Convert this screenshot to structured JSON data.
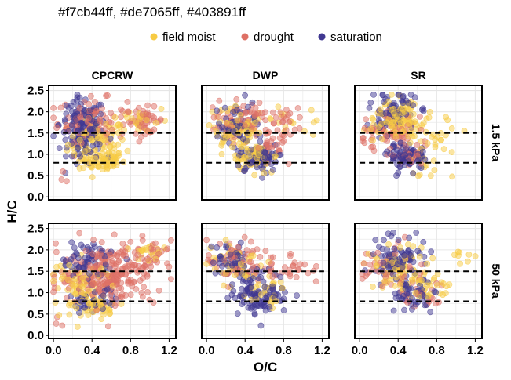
{
  "figure": {
    "title": "#f7cb44ff, #de7065ff, #403891ff"
  },
  "chart_data": {
    "type": "scatter",
    "title": "#f7cb44ff, #de7065ff, #403891ff",
    "xlabel": "O/C",
    "ylabel": "H/C",
    "xlim": [
      -0.05,
      1.27
    ],
    "ylim": [
      -0.07,
      2.62
    ],
    "x_ticks": [
      0.0,
      0.4,
      0.8,
      1.2
    ],
    "x_tick_labels": [
      "0.0",
      "0.4",
      "0.8",
      "1.2"
    ],
    "y_ticks": [
      0.0,
      0.5,
      1.0,
      1.5,
      2.0,
      2.5
    ],
    "y_tick_labels": [
      "0.0",
      "0.5",
      "1.0",
      "1.5",
      "2.0",
      "2.5"
    ],
    "grid": true,
    "legend_position": "top",
    "reference_lines": [
      {
        "y": 1.5,
        "style": "dashed"
      },
      {
        "y": 0.8,
        "style": "dashed"
      }
    ],
    "legend": [
      {
        "name": "field moist",
        "color": "#f7cb44"
      },
      {
        "name": "drought",
        "color": "#de7065"
      },
      {
        "name": "saturation",
        "color": "#403891"
      }
    ],
    "facet_columns": [
      "CPCRW",
      "DWP",
      "SR"
    ],
    "facet_rows": [
      "1.5 kPa",
      "50 kPa"
    ],
    "panels": [
      {
        "column": "CPCRW",
        "row": "1.5 kPa",
        "series": [
          {
            "name": "field moist",
            "clusters": [
              {
                "x": 0.45,
                "y": 1.25,
                "sx": 0.15,
                "sy": 0.3,
                "n": 95
              },
              {
                "x": 0.5,
                "y": 0.85,
                "sx": 0.12,
                "sy": 0.12,
                "n": 55
              },
              {
                "x": 0.9,
                "y": 1.8,
                "sx": 0.15,
                "sy": 0.18,
                "n": 25
              }
            ]
          },
          {
            "name": "drought",
            "clusters": [
              {
                "x": 0.4,
                "y": 1.8,
                "sx": 0.18,
                "sy": 0.25,
                "n": 90
              },
              {
                "x": 0.95,
                "y": 1.8,
                "sx": 0.1,
                "sy": 0.15,
                "n": 45
              },
              {
                "x": 0.08,
                "y": 0.4,
                "sx": 0.03,
                "sy": 0.1,
                "n": 3
              }
            ]
          },
          {
            "name": "saturation",
            "clusters": [
              {
                "x": 0.3,
                "y": 1.7,
                "sx": 0.12,
                "sy": 0.3,
                "n": 110
              },
              {
                "x": 0.35,
                "y": 1.2,
                "sx": 0.1,
                "sy": 0.25,
                "n": 40
              }
            ]
          }
        ]
      },
      {
        "column": "DWP",
        "row": "1.5 kPa",
        "series": [
          {
            "name": "field moist",
            "clusters": [
              {
                "x": 0.3,
                "y": 1.6,
                "sx": 0.15,
                "sy": 0.25,
                "n": 80
              },
              {
                "x": 0.5,
                "y": 0.95,
                "sx": 0.12,
                "sy": 0.15,
                "n": 60
              },
              {
                "x": 0.95,
                "y": 1.75,
                "sx": 0.15,
                "sy": 0.2,
                "n": 15
              }
            ]
          },
          {
            "name": "drought",
            "clusters": [
              {
                "x": 0.35,
                "y": 1.7,
                "sx": 0.15,
                "sy": 0.25,
                "n": 70
              },
              {
                "x": 0.8,
                "y": 1.7,
                "sx": 0.12,
                "sy": 0.2,
                "n": 30
              },
              {
                "x": 0.65,
                "y": 1.1,
                "sx": 0.1,
                "sy": 0.15,
                "n": 20
              }
            ]
          },
          {
            "name": "saturation",
            "clusters": [
              {
                "x": 0.3,
                "y": 1.7,
                "sx": 0.12,
                "sy": 0.3,
                "n": 60
              },
              {
                "x": 0.55,
                "y": 0.9,
                "sx": 0.1,
                "sy": 0.15,
                "n": 70
              }
            ]
          }
        ]
      },
      {
        "column": "SR",
        "row": "1.5 kPa",
        "series": [
          {
            "name": "field moist",
            "clusters": [
              {
                "x": 0.4,
                "y": 1.8,
                "sx": 0.12,
                "sy": 0.22,
                "n": 100
              },
              {
                "x": 0.75,
                "y": 1.5,
                "sx": 0.15,
                "sy": 0.25,
                "n": 25
              },
              {
                "x": 0.65,
                "y": 0.7,
                "sx": 0.12,
                "sy": 0.2,
                "n": 15
              }
            ]
          },
          {
            "name": "drought",
            "clusters": [
              {
                "x": 0.35,
                "y": 1.6,
                "sx": 0.12,
                "sy": 0.25,
                "n": 60
              },
              {
                "x": 0.1,
                "y": 1.4,
                "sx": 0.05,
                "sy": 0.2,
                "n": 15
              },
              {
                "x": 0.5,
                "y": 0.95,
                "sx": 0.1,
                "sy": 0.15,
                "n": 30
              }
            ]
          },
          {
            "name": "saturation",
            "clusters": [
              {
                "x": 0.35,
                "y": 2.0,
                "sx": 0.12,
                "sy": 0.25,
                "n": 80
              },
              {
                "x": 0.5,
                "y": 0.95,
                "sx": 0.1,
                "sy": 0.15,
                "n": 80
              }
            ]
          }
        ]
      },
      {
        "column": "CPCRW",
        "row": "50 kPa",
        "series": [
          {
            "name": "field moist",
            "clusters": [
              {
                "x": 0.3,
                "y": 1.2,
                "sx": 0.15,
                "sy": 0.3,
                "n": 70
              },
              {
                "x": 0.45,
                "y": 0.7,
                "sx": 0.12,
                "sy": 0.12,
                "n": 40
              },
              {
                "x": 1.0,
                "y": 1.9,
                "sx": 0.12,
                "sy": 0.15,
                "n": 20
              }
            ]
          },
          {
            "name": "drought",
            "clusters": [
              {
                "x": 0.55,
                "y": 1.4,
                "sx": 0.25,
                "sy": 0.35,
                "n": 220
              },
              {
                "x": 0.95,
                "y": 1.8,
                "sx": 0.15,
                "sy": 0.2,
                "n": 50
              },
              {
                "x": 0.05,
                "y": 0.35,
                "sx": 0.03,
                "sy": 0.1,
                "n": 3
              }
            ]
          },
          {
            "name": "saturation",
            "clusters": [
              {
                "x": 0.35,
                "y": 1.8,
                "sx": 0.15,
                "sy": 0.2,
                "n": 60
              },
              {
                "x": 0.4,
                "y": 0.8,
                "sx": 0.12,
                "sy": 0.15,
                "n": 40
              }
            ]
          }
        ]
      },
      {
        "column": "DWP",
        "row": "50 kPa",
        "series": [
          {
            "name": "field moist",
            "clusters": [
              {
                "x": 0.3,
                "y": 1.7,
                "sx": 0.15,
                "sy": 0.25,
                "n": 40
              },
              {
                "x": 0.6,
                "y": 1.0,
                "sx": 0.12,
                "sy": 0.2,
                "n": 30
              }
            ]
          },
          {
            "name": "drought",
            "clusters": [
              {
                "x": 0.3,
                "y": 1.7,
                "sx": 0.15,
                "sy": 0.25,
                "n": 60
              },
              {
                "x": 0.85,
                "y": 1.6,
                "sx": 0.12,
                "sy": 0.2,
                "n": 30
              }
            ]
          },
          {
            "name": "saturation",
            "clusters": [
              {
                "x": 0.55,
                "y": 1.0,
                "sx": 0.15,
                "sy": 0.25,
                "n": 110
              },
              {
                "x": 0.25,
                "y": 1.8,
                "sx": 0.1,
                "sy": 0.2,
                "n": 40
              }
            ]
          }
        ]
      },
      {
        "column": "SR",
        "row": "50 kPa",
        "series": [
          {
            "name": "field moist",
            "clusters": [
              {
                "x": 0.4,
                "y": 1.6,
                "sx": 0.15,
                "sy": 0.3,
                "n": 70
              },
              {
                "x": 0.7,
                "y": 1.2,
                "sx": 0.12,
                "sy": 0.2,
                "n": 30
              },
              {
                "x": 1.1,
                "y": 1.85,
                "sx": 0.08,
                "sy": 0.1,
                "n": 8
              }
            ]
          },
          {
            "name": "drought",
            "clusters": [
              {
                "x": 0.3,
                "y": 1.6,
                "sx": 0.15,
                "sy": 0.25,
                "n": 45
              },
              {
                "x": 0.6,
                "y": 1.1,
                "sx": 0.12,
                "sy": 0.2,
                "n": 25
              }
            ]
          },
          {
            "name": "saturation",
            "clusters": [
              {
                "x": 0.4,
                "y": 1.8,
                "sx": 0.15,
                "sy": 0.25,
                "n": 80
              },
              {
                "x": 0.55,
                "y": 1.0,
                "sx": 0.12,
                "sy": 0.2,
                "n": 50
              }
            ]
          }
        ]
      }
    ]
  }
}
